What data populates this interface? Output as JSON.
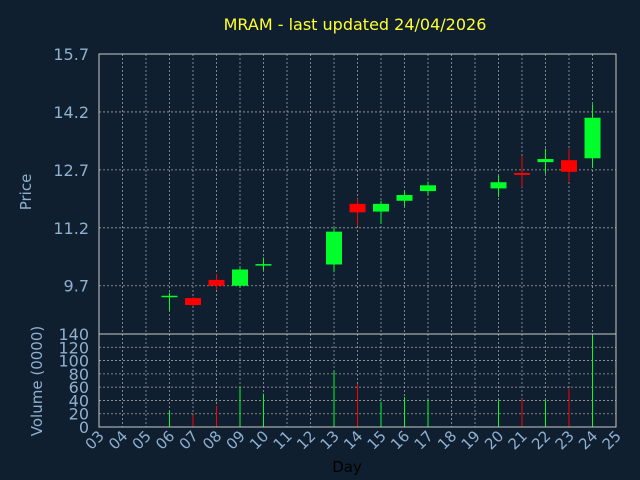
{
  "chart_data": {
    "type": "candlestick",
    "title": "MRAM - last updated 24/04/2026",
    "xlabel": "Day",
    "ylabel_price": "Price",
    "ylabel_volume": "Volume (0000)",
    "price_ticks": [
      "9.7",
      "11.2",
      "12.7",
      "14.2",
      "15.7"
    ],
    "price_ylim": [
      8.45,
      15.7
    ],
    "volume_ticks": [
      "0",
      "20",
      "40",
      "60",
      "80",
      "100",
      "120",
      "140"
    ],
    "volume_ylim": [
      0,
      140
    ],
    "x_ticks": [
      "03",
      "04",
      "05",
      "06",
      "07",
      "08",
      "09",
      "10",
      "11",
      "12",
      "13",
      "14",
      "15",
      "16",
      "17",
      "18",
      "19",
      "20",
      "21",
      "22",
      "23",
      "24",
      "25"
    ],
    "grid": true,
    "colors": {
      "background": "#0f1f30",
      "title": "#ffff33",
      "axis_text": "#8fb0cf",
      "grid": "#a0a0a0",
      "up": "#00ff2a",
      "down": "#ff0000",
      "frame": "#c8c8c8"
    },
    "candles": [
      {
        "day": "06",
        "open": 9.42,
        "high": 9.52,
        "low": 9.05,
        "close": 9.44,
        "volume": 25
      },
      {
        "day": "07",
        "open": 9.38,
        "high": 9.4,
        "low": 9.18,
        "close": 9.2,
        "volume": 18
      },
      {
        "day": "08",
        "open": 9.85,
        "high": 10.0,
        "low": 9.6,
        "close": 9.7,
        "volume": 32
      },
      {
        "day": "09",
        "open": 9.7,
        "high": 10.2,
        "low": 9.65,
        "close": 10.12,
        "volume": 60
      },
      {
        "day": "10",
        "open": 10.22,
        "high": 10.43,
        "low": 10.1,
        "close": 10.26,
        "volume": 50
      },
      {
        "day": "13",
        "open": 10.25,
        "high": 11.2,
        "low": 10.05,
        "close": 11.1,
        "volume": 85
      },
      {
        "day": "14",
        "open": 11.82,
        "high": 11.95,
        "low": 11.25,
        "close": 11.6,
        "volume": 65
      },
      {
        "day": "15",
        "open": 11.62,
        "high": 11.9,
        "low": 11.3,
        "close": 11.82,
        "volume": 38
      },
      {
        "day": "16",
        "open": 11.9,
        "high": 12.15,
        "low": 11.75,
        "close": 12.05,
        "volume": 45
      },
      {
        "day": "17",
        "open": 12.15,
        "high": 12.4,
        "low": 12.05,
        "close": 12.3,
        "volume": 40
      },
      {
        "day": "20",
        "open": 12.22,
        "high": 12.55,
        "low": 12.0,
        "close": 12.38,
        "volume": 40
      },
      {
        "day": "21",
        "open": 12.62,
        "high": 13.05,
        "low": 12.25,
        "close": 12.57,
        "volume": 42
      },
      {
        "day": "22",
        "open": 12.9,
        "high": 13.25,
        "low": 12.6,
        "close": 12.98,
        "volume": 40
      },
      {
        "day": "23",
        "open": 12.95,
        "high": 13.25,
        "low": 12.4,
        "close": 12.65,
        "volume": 58
      },
      {
        "day": "24",
        "open": 13.0,
        "high": 14.4,
        "low": 12.75,
        "close": 14.05,
        "volume": 138
      }
    ]
  }
}
